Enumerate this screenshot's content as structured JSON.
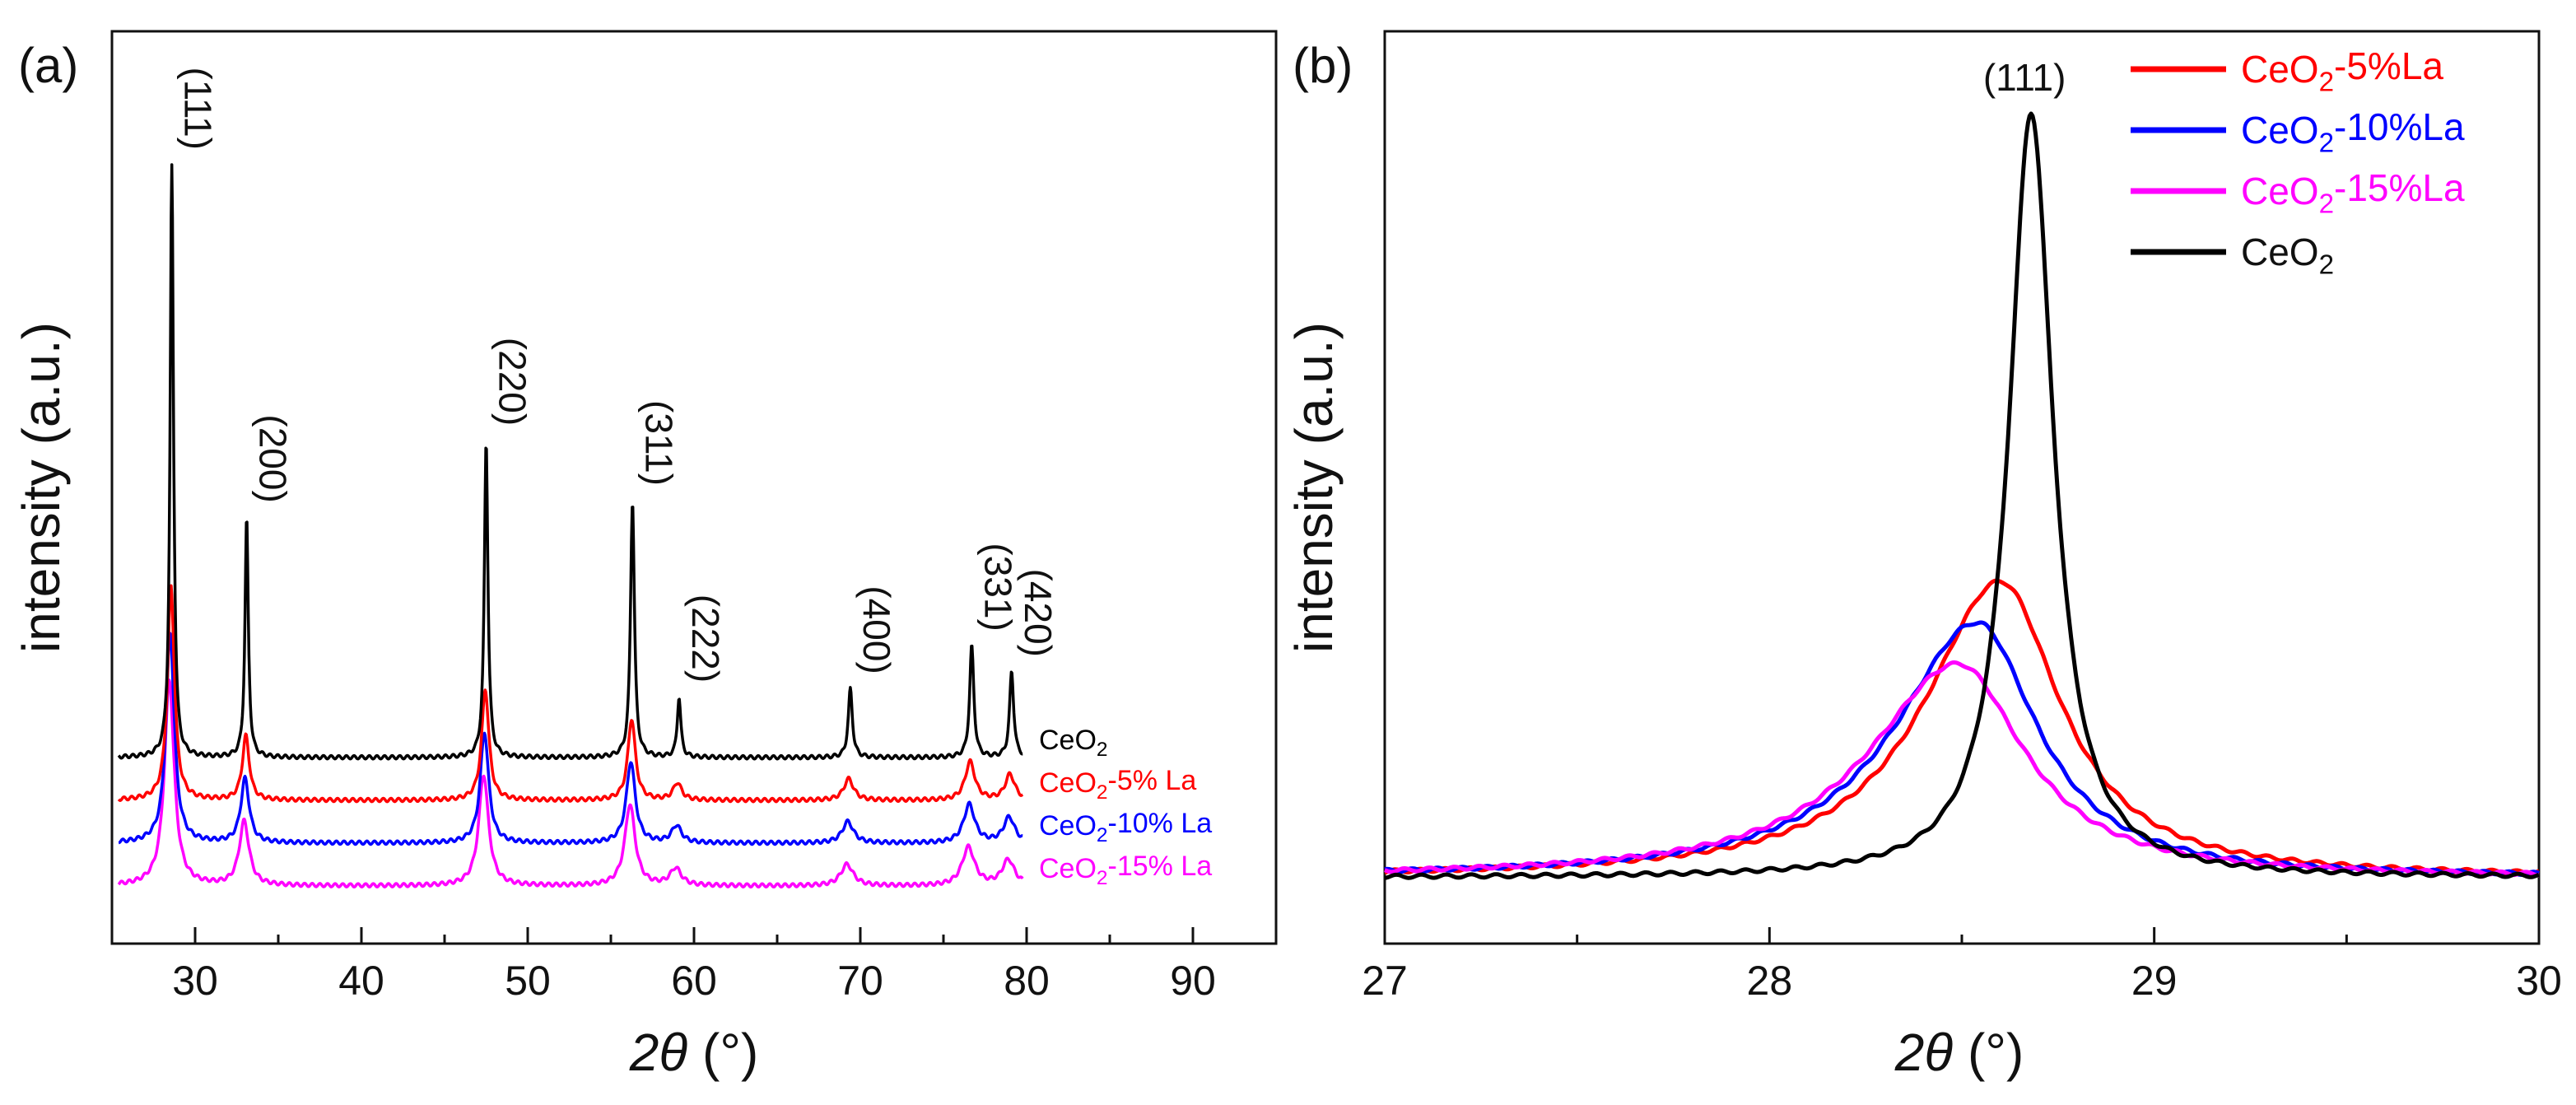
{
  "chart_data": [
    {
      "panel": "(a)",
      "type": "line",
      "xlabel_symbol": "2θ",
      "xlabel_unit": "(°)",
      "ylabel": "intensity (a.u.)",
      "xlim": [
        25,
        95
      ],
      "xticks": [
        30,
        40,
        50,
        60,
        70,
        80,
        90
      ],
      "y_offsets": [
        3.0,
        2.0,
        1.0,
        0.0
      ],
      "peak_annotations": [
        {
          "label": "(111)",
          "x": 28.6
        },
        {
          "label": "(200)",
          "x": 33.1
        },
        {
          "label": "(220)",
          "x": 47.5
        },
        {
          "label": "(311)",
          "x": 56.3
        },
        {
          "label": "(222)",
          "x": 59.1
        },
        {
          "label": "(400)",
          "x": 69.4
        },
        {
          "label": "(331)",
          "x": 76.7
        },
        {
          "label": "(420)",
          "x": 79.1
        }
      ],
      "series": [
        {
          "name": "CeO2",
          "label_main": "CeO",
          "label_sub": "2",
          "label_tail": "",
          "color": "#000000",
          "peaks": [
            [
              28.6,
              14.0,
              0.12
            ],
            [
              33.1,
              5.6,
              0.12
            ],
            [
              47.5,
              7.4,
              0.13
            ],
            [
              56.3,
              6.0,
              0.14
            ],
            [
              59.1,
              1.4,
              0.13
            ],
            [
              69.4,
              1.6,
              0.15
            ],
            [
              76.7,
              2.6,
              0.15
            ],
            [
              79.1,
              2.0,
              0.15
            ]
          ]
        },
        {
          "name": "CeO2-5% La",
          "label_main": "CeO",
          "label_sub": "2",
          "label_tail": "-5% La",
          "color": "#ff0000",
          "peaks": [
            [
              28.55,
              5.0,
              0.25
            ],
            [
              33.05,
              1.5,
              0.25
            ],
            [
              47.45,
              2.6,
              0.26
            ],
            [
              56.25,
              1.9,
              0.27
            ],
            [
              59.0,
              0.4,
              0.3
            ],
            [
              69.3,
              0.5,
              0.35
            ],
            [
              76.6,
              0.9,
              0.35
            ],
            [
              79.0,
              0.6,
              0.35
            ]
          ]
        },
        {
          "name": "CeO2-10% La",
          "label_main": "CeO",
          "label_sub": "2",
          "label_tail": "-10% La",
          "color": "#0000ff",
          "peaks": [
            [
              28.5,
              4.9,
              0.3
            ],
            [
              33.0,
              1.5,
              0.3
            ],
            [
              47.4,
              2.6,
              0.3
            ],
            [
              56.2,
              1.9,
              0.32
            ],
            [
              58.95,
              0.4,
              0.35
            ],
            [
              69.25,
              0.5,
              0.4
            ],
            [
              76.55,
              0.9,
              0.4
            ],
            [
              78.95,
              0.6,
              0.4
            ]
          ]
        },
        {
          "name": "CeO2-15% La",
          "label_main": "CeO",
          "label_sub": "2",
          "label_tail": "-15% La",
          "color": "#ff00ff",
          "peaks": [
            [
              28.45,
              4.8,
              0.35
            ],
            [
              32.95,
              1.5,
              0.35
            ],
            [
              47.35,
              2.6,
              0.35
            ],
            [
              56.15,
              1.9,
              0.37
            ],
            [
              58.9,
              0.4,
              0.4
            ],
            [
              69.2,
              0.5,
              0.45
            ],
            [
              76.5,
              0.9,
              0.45
            ],
            [
              78.9,
              0.6,
              0.45
            ]
          ]
        }
      ]
    },
    {
      "panel": "(b)",
      "type": "line",
      "xlabel_symbol": "2θ",
      "xlabel_unit": "(°)",
      "ylabel": "intensity (a.u.)",
      "xlim": [
        27,
        30
      ],
      "xticks": [
        27,
        28,
        29,
        30
      ],
      "peak_annotation": {
        "label": "(111)",
        "x": 28.68
      },
      "series": [
        {
          "name": "CeO2-5%La",
          "label_main": "CeO",
          "label_sub": "2",
          "label_tail": "-5%La",
          "color": "#ff0000",
          "center": 28.6,
          "amplitude": 0.36,
          "hwhm_left": 0.24,
          "hwhm_right": 0.19
        },
        {
          "name": "CeO2-10%La",
          "label_main": "CeO",
          "label_sub": "2",
          "label_tail": "-10%La",
          "color": "#0000ff",
          "center": 28.54,
          "amplitude": 0.31,
          "hwhm_left": 0.26,
          "hwhm_right": 0.19
        },
        {
          "name": "CeO2-15%La",
          "label_main": "CeO",
          "label_sub": "2",
          "label_tail": "-15%La",
          "color": "#ff00ff",
          "center": 28.49,
          "amplitude": 0.26,
          "hwhm_left": 0.28,
          "hwhm_right": 0.21
        },
        {
          "name": "CeO2",
          "label_main": "CeO",
          "label_sub": "2",
          "label_tail": "",
          "color": "#000000",
          "center": 28.68,
          "amplitude": 0.93,
          "hwhm_left": 0.07,
          "hwhm_right": 0.07
        }
      ]
    }
  ]
}
